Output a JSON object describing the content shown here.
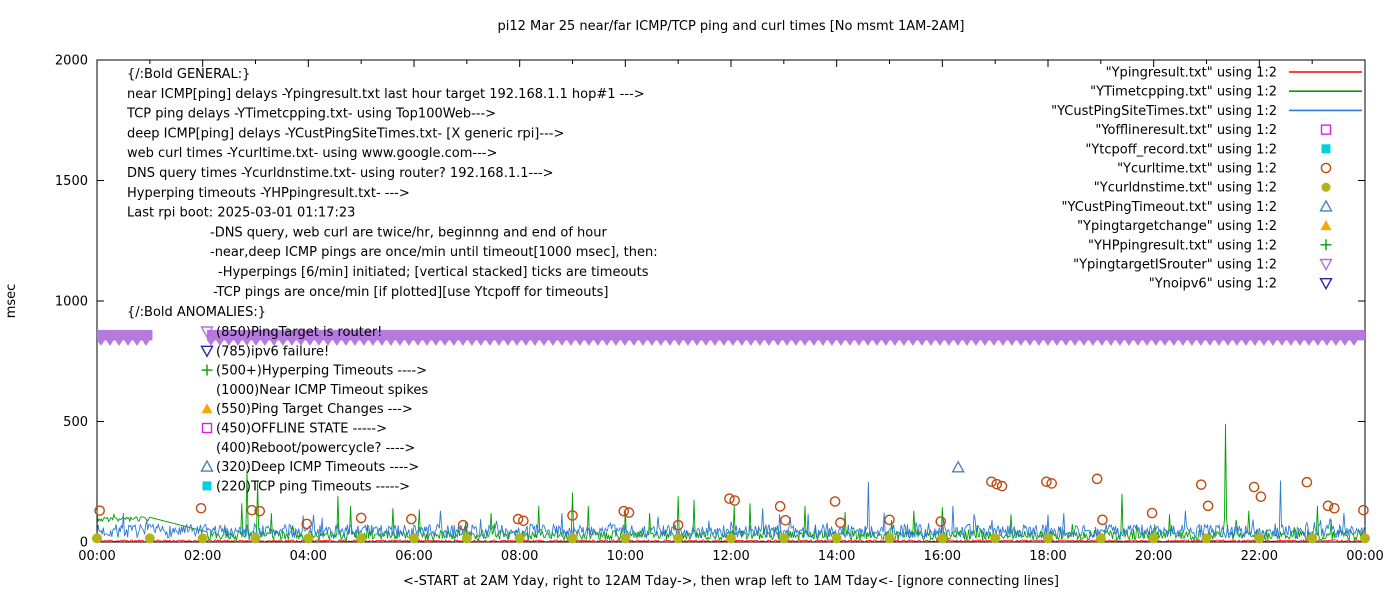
{
  "title": "pi12 Mar 25  near/far ICMP/TCP ping and curl times [No msmt 1AM-2AM]",
  "axes": {
    "ylabel": "msec",
    "xlabel": "<-START at 2AM Yday, right to 12AM Tday->, then wrap left to 1AM Tday<- [ignore connecting lines]"
  },
  "chart_data": {
    "type": "line",
    "title": "pi12 Mar 25  near/far ICMP/TCP ping and curl times [No msmt 1AM-2AM]",
    "xlabel": "<-START at 2AM Yday, right to 12AM Tday->, then wrap left to 1AM Tday<- [ignore connecting lines]",
    "ylabel": "msec",
    "ylim": [
      0,
      2000
    ],
    "x_range_hours": [
      0,
      24
    ],
    "grid": false,
    "legend_position": "top-right",
    "y_tick_values": [
      0,
      500,
      1000,
      1500,
      2000
    ],
    "x_tick_labels": [
      "00:00",
      "02:00",
      "04:00",
      "06:00",
      "08:00",
      "10:00",
      "12:00",
      "14:00",
      "16:00",
      "18:00",
      "20:00",
      "22:00",
      "00:00"
    ],
    "legend": [
      {
        "label": "\"Ypingresult.txt\" using 1:2",
        "marker": "line",
        "color": "#ff0000"
      },
      {
        "label": "\"YTimetcpping.txt\" using 1:2",
        "marker": "line",
        "color": "#00a000"
      },
      {
        "label": "\"YCustPingSiteTimes.txt\" using 1:2",
        "marker": "line",
        "color": "#2e7bd6"
      },
      {
        "label": "\"Yofflineresult.txt\" using 1:2",
        "marker": "square-open",
        "color": "#e020e0"
      },
      {
        "label": "\"Ytcpoff_record.txt\" using 1:2",
        "marker": "square-filled",
        "color": "#00d0e0"
      },
      {
        "label": "\"Ycurltime.txt\" using 1:2",
        "marker": "circle-open",
        "color": "#bf4a12"
      },
      {
        "label": "\"Ycurldnstime.txt\" using 1:2",
        "marker": "circle-filled",
        "color": "#b3b31a"
      },
      {
        "label": "\"YCustPingTimeout.txt\" using 1:2",
        "marker": "tri-up-open",
        "color": "#4a80c0"
      },
      {
        "label": "\"Ypingtargetchange\" using 1:2",
        "marker": "tri-up-filled",
        "color": "#ffa500"
      },
      {
        "label": "\"YHPpingresult.txt\" using 1:2",
        "marker": "plus",
        "color": "#00a000"
      },
      {
        "label": "\"YpingtargetISrouter\" using 1:2",
        "marker": "tri-down-open",
        "color": "#b66dd9"
      },
      {
        "label": "\"Ynoipv6\" using 1:2",
        "marker": "tri-down-open",
        "color": "#2626a8"
      }
    ],
    "series": {
      "lines": [
        {
          "name": "near-icmp-ping",
          "color": "#ff0000",
          "seed": 11,
          "width": 0.8,
          "burst": 0,
          "burst_amp": 0,
          "segments": [
            {
              "from": 0,
              "to": 24,
              "base": 5,
              "amp": 4
            }
          ],
          "spikes": []
        },
        {
          "name": "tcp-ping",
          "color": "#00a000",
          "seed": 3,
          "width": 0.9,
          "burst": 0.04,
          "burst_amp": 60,
          "segments": [
            {
              "from": 0,
              "to": 1.0,
              "base": 95,
              "amp": 10
            },
            {
              "from": 2.08,
              "to": 24,
              "base": 28,
              "amp": 20
            }
          ],
          "spikes": [
            [
              2.75,
              160
            ],
            [
              2.85,
              300
            ],
            [
              3.05,
              250
            ],
            [
              3.3,
              120
            ],
            [
              4.55,
              190
            ],
            [
              4.8,
              150
            ],
            [
              5.6,
              140
            ],
            [
              6.1,
              135
            ],
            [
              7.45,
              120
            ],
            [
              8.35,
              150
            ],
            [
              9.0,
              205
            ],
            [
              9.3,
              150
            ],
            [
              10.0,
              135
            ],
            [
              10.45,
              120
            ],
            [
              11.0,
              190
            ],
            [
              11.3,
              175
            ],
            [
              12.05,
              150
            ],
            [
              12.35,
              160
            ],
            [
              13.4,
              150
            ],
            [
              14.15,
              125
            ],
            [
              15.45,
              130
            ],
            [
              16.0,
              145
            ],
            [
              17.3,
              115
            ],
            [
              19.4,
              200
            ],
            [
              20.3,
              115
            ],
            [
              21.35,
              490
            ],
            [
              21.8,
              130
            ],
            [
              23.1,
              150
            ]
          ]
        },
        {
          "name": "deep-icmp-ping",
          "color": "#2e7bd6",
          "seed": 7,
          "width": 0.9,
          "burst": 0.05,
          "burst_amp": 60,
          "segments": [
            {
              "from": 0,
              "to": 24,
              "base": 45,
              "amp": 28
            }
          ],
          "spikes": [
            [
              0.5,
              120
            ],
            [
              3.9,
              110
            ],
            [
              6.5,
              130
            ],
            [
              8.8,
              120
            ],
            [
              12.6,
              140
            ],
            [
              14.6,
              250
            ],
            [
              16.2,
              150
            ],
            [
              18.3,
              120
            ],
            [
              20.6,
              130
            ],
            [
              22.4,
              255
            ],
            [
              23.6,
              120
            ]
          ]
        }
      ],
      "router_band": {
        "label": "YpingtargetISrouter markers",
        "y": 850,
        "half_height_msec": 30,
        "segments_hours": [
          [
            0,
            1.05
          ],
          [
            2.08,
            24
          ]
        ],
        "color": "#b679de"
      },
      "curl_times_points": {
        "label": "Ycurltime",
        "marker": "circle-open",
        "color": "#bf4a12",
        "points": [
          [
            0.05,
            130
          ],
          [
            1.97,
            140
          ],
          [
            2.93,
            132
          ],
          [
            3.08,
            128
          ],
          [
            3.97,
            75
          ],
          [
            5.0,
            100
          ],
          [
            5.95,
            95
          ],
          [
            6.93,
            70
          ],
          [
            7.97,
            95
          ],
          [
            8.07,
            88
          ],
          [
            9.0,
            110
          ],
          [
            9.97,
            128
          ],
          [
            10.07,
            122
          ],
          [
            11.0,
            70
          ],
          [
            11.97,
            180
          ],
          [
            12.07,
            172
          ],
          [
            12.93,
            148
          ],
          [
            13.03,
            90
          ],
          [
            13.97,
            168
          ],
          [
            14.07,
            80
          ],
          [
            15.0,
            92
          ],
          [
            15.97,
            85
          ],
          [
            16.93,
            250
          ],
          [
            17.03,
            240
          ],
          [
            17.13,
            232
          ],
          [
            17.97,
            250
          ],
          [
            18.07,
            243
          ],
          [
            18.93,
            262
          ],
          [
            19.03,
            92
          ],
          [
            19.97,
            120
          ],
          [
            20.9,
            238
          ],
          [
            21.03,
            150
          ],
          [
            21.9,
            228
          ],
          [
            22.03,
            188
          ],
          [
            22.9,
            248
          ],
          [
            23.3,
            150
          ],
          [
            23.42,
            140
          ],
          [
            23.97,
            132
          ]
        ]
      },
      "dns_points": {
        "label": "Ycurldnstime",
        "marker": "circle-filled",
        "color": "#b3b31a",
        "y": 15,
        "hours": [
          0,
          1,
          2,
          3,
          4,
          5,
          6,
          7,
          8,
          9,
          10,
          11,
          12,
          13,
          14,
          15,
          16,
          17,
          18,
          19,
          20,
          21,
          22,
          23,
          24
        ]
      },
      "deep_icmp_timeouts": {
        "label": "YCustPingTimeout",
        "marker": "tri-up-open",
        "color": "#4a80c0",
        "points": [
          [
            16.3,
            310
          ]
        ]
      }
    },
    "annotations": {
      "general": {
        "lines": [
          {
            "indent": 0,
            "text": "{/:Bold GENERAL:}"
          },
          {
            "indent": 0,
            "text": "near ICMP[ping] delays -Ypingresult.txt last hour target 192.168.1.1 hop#1 --->"
          },
          {
            "indent": 0,
            "text": "TCP ping delays -YTimetcpping.txt- using Top100Web--->"
          },
          {
            "indent": 0,
            "text": "deep ICMP[ping] delays -YCustPingSiteTimes.txt- [X generic rpi]--->"
          },
          {
            "indent": 0,
            "text": "web curl times -Ycurltime.txt- using www.google.com--->"
          },
          {
            "indent": 0,
            "text": "DNS query times -Ycurldnstime.txt- using router? 192.168.1.1--->"
          },
          {
            "indent": 0,
            "text": "Hyperping timeouts -YHPpingresult.txt- --->"
          },
          {
            "indent": 0,
            "text": "Last rpi boot: 2025-03-01 01:17:23"
          },
          {
            "indent": 83,
            "text": "-DNS query, web curl are twice/hr, beginnng and end of hour"
          },
          {
            "indent": 83,
            "text": "-near,deep ICMP pings are once/min until timeout[1000 msec], then:"
          },
          {
            "indent": 91,
            "text": "-Hyperpings [6/min] initiated; [vertical stacked] ticks are timeouts"
          },
          {
            "indent": 86,
            "text": "-TCP pings are once/min [if plotted][use Ytcpoff for timeouts]"
          }
        ]
      },
      "anomalies": {
        "header": "{/:Bold ANOMALIES:}",
        "items": [
          {
            "marker": "tri-down-open",
            "color": "#b66dd9",
            "text": "(850)PingTarget is router!"
          },
          {
            "marker": "tri-down-open",
            "color": "#2626a8",
            "text": "(785)ipv6 failure!"
          },
          {
            "marker": "plus",
            "color": "#00a000",
            "text": "(500+)Hyperping Timeouts ---->"
          },
          {
            "marker": null,
            "color": null,
            "text": "(1000)Near ICMP Timeout spikes"
          },
          {
            "marker": "tri-up-filled",
            "color": "#ffa500",
            "text": "(550)Ping Target Changes --->"
          },
          {
            "marker": "square-open",
            "color": "#e020e0",
            "text": "(450)OFFLINE STATE ----->"
          },
          {
            "marker": null,
            "color": null,
            "text": "(400)Reboot/powercycle? ---->"
          },
          {
            "marker": "tri-up-open",
            "color": "#4a80c0",
            "text": "(320)Deep ICMP Timeouts ---->"
          },
          {
            "marker": "square-filled",
            "color": "#00d0e0",
            "text": "(220)TCP ping Timeouts ----->"
          }
        ]
      }
    }
  }
}
